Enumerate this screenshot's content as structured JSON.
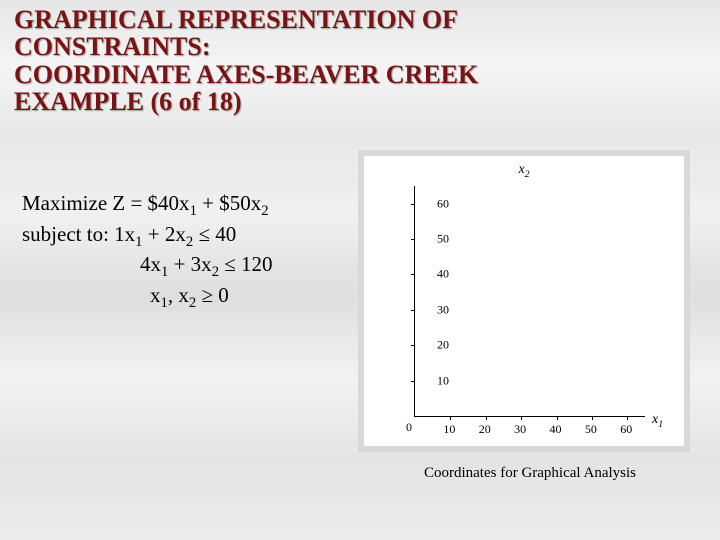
{
  "title": {
    "line1": "GRAPHICAL REPRESENTATION OF",
    "line2": "CONSTRAINTS:",
    "line3": "COORDINATE AXES-BEAVER CREEK",
    "line4": "EXAMPLE (6 of 18)",
    "fontsize": 26,
    "color": "#7a1313"
  },
  "body": {
    "fontsize": 21,
    "maximize_prefix": "Maximize Z = $40x",
    "maximize_mid": " + $50x",
    "subject_prefix": "subject to:   1x",
    "subject_mid": " + 2x",
    "subject_rhs": " ≤ 40",
    "c2_prefix": "4x",
    "c2_mid": " + 3x",
    "c2_rhs": " ≤ 120",
    "nn_prefix": "x",
    "nn_mid": ", x",
    "nn_rhs": " ≥ 0",
    "sub1": "1",
    "sub2": "2"
  },
  "chart": {
    "y_label_var": "x",
    "y_label_sub": "2",
    "x_label_var": "x",
    "x_label_sub": "1",
    "y_ticks": [
      60,
      50,
      40,
      30,
      20,
      10
    ],
    "x_ticks": [
      10,
      20,
      30,
      40,
      50,
      60
    ],
    "zero": "0",
    "ymax": 65,
    "xmax": 65,
    "axis_color": "#000000",
    "tick_fontsize": 12,
    "label_fontsize": 14,
    "background_color": "#ffffff",
    "frame_color": "#d8d8d8"
  },
  "caption": {
    "text": "Coordinates for Graphical Analysis",
    "fontsize": 15
  }
}
